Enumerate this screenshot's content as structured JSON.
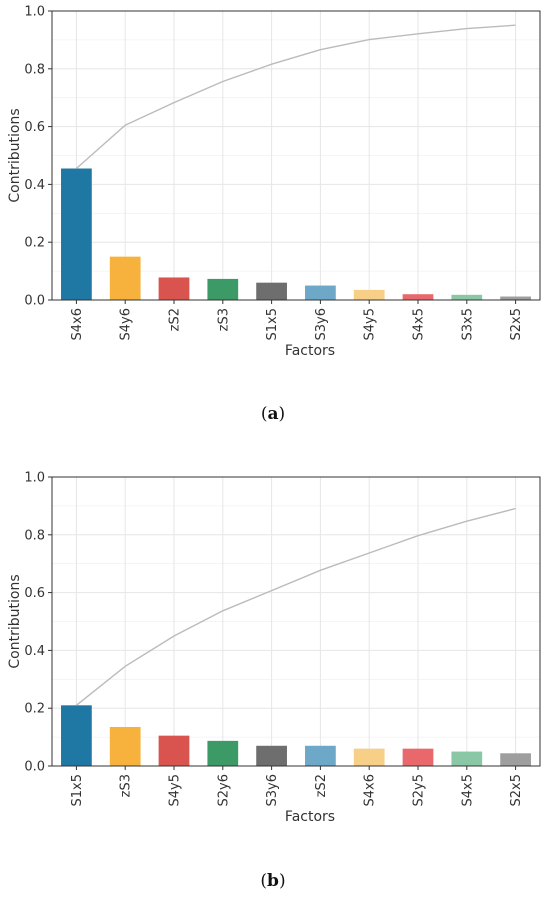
{
  "chart_data": [
    {
      "type": "bar",
      "panel_label": "a",
      "categories": [
        "S4x6",
        "S4y6",
        "zS2",
        "zS3",
        "S1x5",
        "S3y6",
        "S4y5",
        "S4x5",
        "S3x5",
        "S2x5"
      ],
      "values": [
        0.455,
        0.15,
        0.078,
        0.073,
        0.06,
        0.05,
        0.035,
        0.02,
        0.018,
        0.012
      ],
      "cumulative": [
        0.455,
        0.605,
        0.683,
        0.756,
        0.816,
        0.866,
        0.901,
        0.921,
        0.939,
        0.951
      ],
      "colors": [
        "#1f78a4",
        "#f7b13d",
        "#d9534f",
        "#3c9a66",
        "#6e6e6e",
        "#6ea8c8",
        "#f8cf86",
        "#e8686b",
        "#8ac7a5",
        "#9e9e9e"
      ],
      "line_color": "#bbbbbb",
      "xlabel": "Factors",
      "ylabel": "Contributions",
      "ylim": [
        0,
        1
      ],
      "yticks": [
        "0.0",
        "0.2",
        "0.4",
        "0.6",
        "0.8",
        "1.0"
      ],
      "grid": true
    },
    {
      "type": "bar",
      "panel_label": "b",
      "categories": [
        "S1x5",
        "zS3",
        "S4y5",
        "S2y6",
        "S3y6",
        "zS2",
        "S4x6",
        "S2y5",
        "S4x5",
        "S2x5"
      ],
      "values": [
        0.21,
        0.135,
        0.105,
        0.087,
        0.07,
        0.07,
        0.06,
        0.06,
        0.05,
        0.044
      ],
      "cumulative": [
        0.21,
        0.345,
        0.45,
        0.537,
        0.607,
        0.677,
        0.737,
        0.797,
        0.847,
        0.891
      ],
      "colors": [
        "#1f78a4",
        "#f7b13d",
        "#d9534f",
        "#3c9a66",
        "#6e6e6e",
        "#6ea8c8",
        "#f8cf86",
        "#e8686b",
        "#8ac7a5",
        "#9e9e9e"
      ],
      "line_color": "#bbbbbb",
      "xlabel": "Factors",
      "ylabel": "Contributions",
      "ylim": [
        0,
        1
      ],
      "yticks": [
        "0.0",
        "0.2",
        "0.4",
        "0.6",
        "0.8",
        "1.0"
      ],
      "grid": true
    }
  ]
}
